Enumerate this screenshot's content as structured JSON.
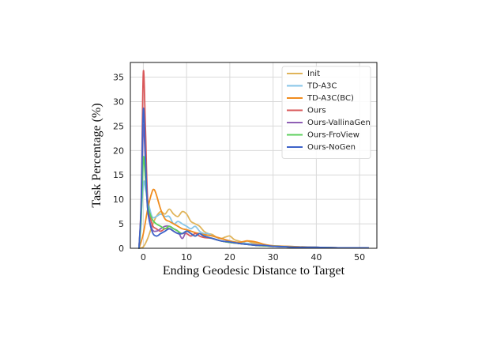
{
  "chart_data": {
    "type": "line",
    "title": "",
    "xlabel": "Ending Geodesic Distance to Target",
    "ylabel": "Task Percentage (%)",
    "xlim": [
      -3,
      54
    ],
    "ylim": [
      0,
      38
    ],
    "xticks": [
      0,
      10,
      20,
      30,
      40,
      50
    ],
    "yticks": [
      0,
      5,
      10,
      15,
      20,
      25,
      30,
      35
    ],
    "grid": true,
    "legend_position": "top-right",
    "series": [
      {
        "name": "Init",
        "color": "#e0b45a",
        "x": [
          -1,
          0,
          1,
          2,
          3,
          4,
          5,
          6,
          7,
          8,
          9,
          10,
          11,
          12,
          13,
          14,
          15,
          16,
          17,
          18,
          19,
          20,
          21,
          22,
          23,
          24,
          25,
          26,
          28,
          30,
          32,
          35,
          38,
          40,
          42,
          45,
          48,
          50,
          52
        ],
        "y": [
          0,
          0.3,
          2,
          4.5,
          6.5,
          7.5,
          7,
          8,
          7,
          6.5,
          7.5,
          7,
          5.5,
          5,
          4.5,
          3.5,
          3,
          2.8,
          2.2,
          2,
          2.3,
          2.5,
          1.8,
          1.5,
          1.3,
          1.5,
          1.2,
          1.0,
          0.7,
          0.5,
          0.4,
          0.3,
          0.2,
          0.2,
          0.1,
          0.1,
          0.1,
          0.1,
          0.1
        ]
      },
      {
        "name": "TD-A3C",
        "color": "#87c5e8",
        "x": [
          -1,
          0,
          0.5,
          1,
          2,
          3,
          4,
          5,
          6,
          7,
          8,
          9,
          10,
          11,
          12,
          13,
          14,
          15,
          16,
          18,
          20,
          22,
          24,
          26,
          28,
          30,
          33,
          36,
          40,
          45,
          50,
          52
        ],
        "y": [
          0,
          13,
          12,
          10,
          6.5,
          6.5,
          7,
          6.5,
          6.5,
          5,
          5.5,
          5,
          4.5,
          4,
          4.5,
          3.5,
          3,
          3,
          2.5,
          2,
          1.5,
          1.2,
          1.0,
          0.8,
          0.6,
          0.5,
          0.4,
          0.3,
          0.2,
          0.1,
          0.1,
          0.1
        ]
      },
      {
        "name": "TD-A3C(BC)",
        "color": "#f08c1e",
        "x": [
          -1,
          0,
          1,
          2,
          2.5,
          3,
          4,
          5,
          6,
          7,
          8,
          9,
          10,
          11,
          12,
          13,
          14,
          16,
          18,
          20,
          22,
          24,
          26,
          28,
          30,
          33,
          36,
          40,
          45,
          50,
          52
        ],
        "y": [
          0,
          3,
          8,
          11.5,
          12,
          11,
          8,
          6,
          5.5,
          5,
          4.5,
          4,
          3.8,
          3.5,
          3.2,
          3,
          2.8,
          2.5,
          2,
          1.5,
          1.2,
          1.5,
          1.3,
          0.8,
          0.5,
          0.4,
          0.3,
          0.2,
          0.1,
          0.1,
          0.1
        ]
      },
      {
        "name": "Ours",
        "color": "#d9585a",
        "x": [
          -1,
          -0.5,
          0,
          0.5,
          1,
          2,
          3,
          4,
          5,
          6,
          7,
          8,
          9,
          10,
          11,
          12,
          13,
          14,
          16,
          18,
          20,
          22,
          24,
          26,
          28,
          30,
          33,
          36,
          40,
          45,
          50,
          52
        ],
        "y": [
          0,
          10,
          36,
          24,
          10,
          5,
          4,
          3.5,
          4,
          4,
          3.5,
          3,
          3,
          3,
          2.5,
          3,
          2.5,
          2.2,
          2,
          1.5,
          1.2,
          1.0,
          0.8,
          0.7,
          0.5,
          0.4,
          0.3,
          0.2,
          0.2,
          0.1,
          0.1,
          0.1
        ]
      },
      {
        "name": "Ours-VallinaGen",
        "color": "#8f5fb4",
        "x": [
          -1,
          -0.5,
          0,
          0.5,
          1,
          2,
          3,
          4,
          5,
          6,
          7,
          8,
          9,
          10,
          11,
          12,
          13,
          14,
          16,
          18,
          20,
          22,
          24,
          26,
          28,
          30,
          33,
          36,
          40,
          45,
          50,
          52
        ],
        "y": [
          0,
          8,
          25,
          17,
          8,
          4,
          3.5,
          4,
          4.5,
          4.5,
          4,
          3.5,
          2,
          3.5,
          3,
          2.5,
          3,
          2.5,
          2,
          1.5,
          1.2,
          1.0,
          0.8,
          0.6,
          0.5,
          0.4,
          0.3,
          0.2,
          0.2,
          0.1,
          0.1,
          0.1
        ]
      },
      {
        "name": "Ours-FroView",
        "color": "#5ccf5c",
        "x": [
          -1,
          -0.5,
          0,
          0.5,
          1,
          2,
          3,
          4,
          5,
          6,
          7,
          8,
          9,
          10,
          11,
          12,
          13,
          14,
          16,
          18,
          20,
          22,
          24,
          26,
          28,
          30,
          33,
          36,
          40,
          45,
          50,
          52
        ],
        "y": [
          0,
          6,
          18.5,
          14,
          9,
          6,
          5,
          4.5,
          4,
          4.5,
          4,
          3.5,
          3,
          3.5,
          3,
          2.5,
          3,
          2.5,
          2,
          1.5,
          1.2,
          1.0,
          0.8,
          0.6,
          0.5,
          0.4,
          0.3,
          0.2,
          0.2,
          0.1,
          0.1,
          0.1
        ]
      },
      {
        "name": "Ours-NoGen",
        "color": "#3d63c9",
        "x": [
          -1,
          -0.5,
          0,
          0.5,
          1,
          2,
          3,
          4,
          5,
          6,
          7,
          8,
          9,
          10,
          11,
          12,
          13,
          14,
          16,
          18,
          20,
          22,
          24,
          26,
          28,
          30,
          33,
          36,
          40,
          45,
          50,
          52
        ],
        "y": [
          0,
          9,
          28.5,
          18,
          8,
          3.5,
          2.5,
          3,
          3.5,
          4,
          3.5,
          3,
          3,
          3.5,
          3,
          2.5,
          3,
          2.5,
          2,
          1.5,
          1.3,
          1.0,
          0.8,
          0.6,
          0.6,
          0.4,
          0.3,
          0.2,
          0.2,
          0.1,
          0.1,
          0.1
        ]
      }
    ]
  }
}
